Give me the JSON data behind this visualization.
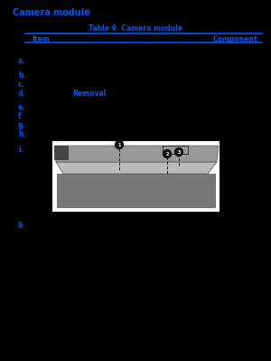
{
  "background_color": "#000000",
  "blue_color": "#0055FF",
  "white_color": "#FFFFFF",
  "title": "Camera module",
  "table_header": "Table 9. Camera module",
  "col1_header": "Item",
  "col2_header": "Component",
  "items": [
    "a.",
    "b.",
    "c.",
    "d.",
    "e.",
    "f.",
    "g.",
    "h.",
    "i."
  ],
  "note_label": "Removal",
  "last_item": "9.",
  "figsize": [
    3.0,
    3.99
  ],
  "dpi": 100
}
